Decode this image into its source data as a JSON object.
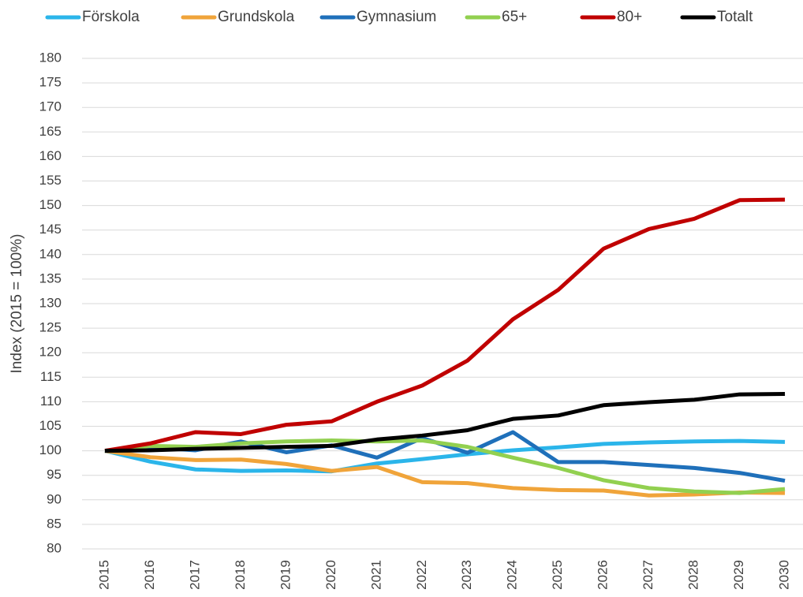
{
  "chart_data": {
    "type": "line",
    "y_axis_label": "Index (2015 = 100%)",
    "categories": [
      "2015",
      "2016",
      "2017",
      "2018",
      "2019",
      "2020",
      "2021",
      "2022",
      "2023",
      "2024",
      "2025",
      "2026",
      "2027",
      "2028",
      "2029",
      "2030"
    ],
    "series": [
      {
        "name": "Förskola",
        "color": "#2bb5ea",
        "values": [
          100,
          97.8,
          96.2,
          95.9,
          96,
          95.8,
          97.4,
          98.3,
          99.3,
          100.1,
          100.7,
          101.4,
          101.7,
          101.9,
          102,
          101.8
        ]
      },
      {
        "name": "Grundskola",
        "color": "#f0a43a",
        "values": [
          100,
          98.7,
          98.1,
          98.2,
          97.3,
          95.9,
          96.7,
          93.6,
          93.4,
          92.4,
          92,
          91.9,
          90.9,
          91.1,
          91.5,
          91.4
        ]
      },
      {
        "name": "Gymnasium",
        "color": "#1f70ba",
        "values": [
          100,
          100.7,
          100.1,
          101.9,
          99.7,
          101.1,
          98.6,
          102.6,
          99.6,
          103.8,
          97.7,
          97.7,
          97.1,
          96.5,
          95.5,
          93.9
        ]
      },
      {
        "name": "65+",
        "color": "#92d050",
        "values": [
          100,
          101,
          100.8,
          101.5,
          101.9,
          102.1,
          101.9,
          102.1,
          100.8,
          98.6,
          96.5,
          94,
          92.4,
          91.7,
          91.4,
          92.2
        ]
      },
      {
        "name": "80+",
        "color": "#c00000",
        "values": [
          100,
          101.5,
          103.8,
          103.4,
          105.3,
          106,
          110,
          113.3,
          118.4,
          126.8,
          132.8,
          141.2,
          145.2,
          147.3,
          151.1,
          151.2
        ]
      },
      {
        "name": "Totalt",
        "color": "#000000",
        "values": [
          100,
          100.1,
          100.4,
          100.6,
          100.8,
          101,
          102.3,
          103.1,
          104.2,
          106.5,
          107.2,
          109.3,
          109.9,
          110.4,
          111.5,
          111.6
        ]
      }
    ],
    "ylim": [
      80,
      180
    ],
    "yticks": [
      80,
      85,
      90,
      95,
      100,
      105,
      110,
      115,
      120,
      125,
      130,
      135,
      140,
      145,
      150,
      155,
      160,
      165,
      170,
      175,
      180
    ],
    "grid": true,
    "legend": "top"
  }
}
